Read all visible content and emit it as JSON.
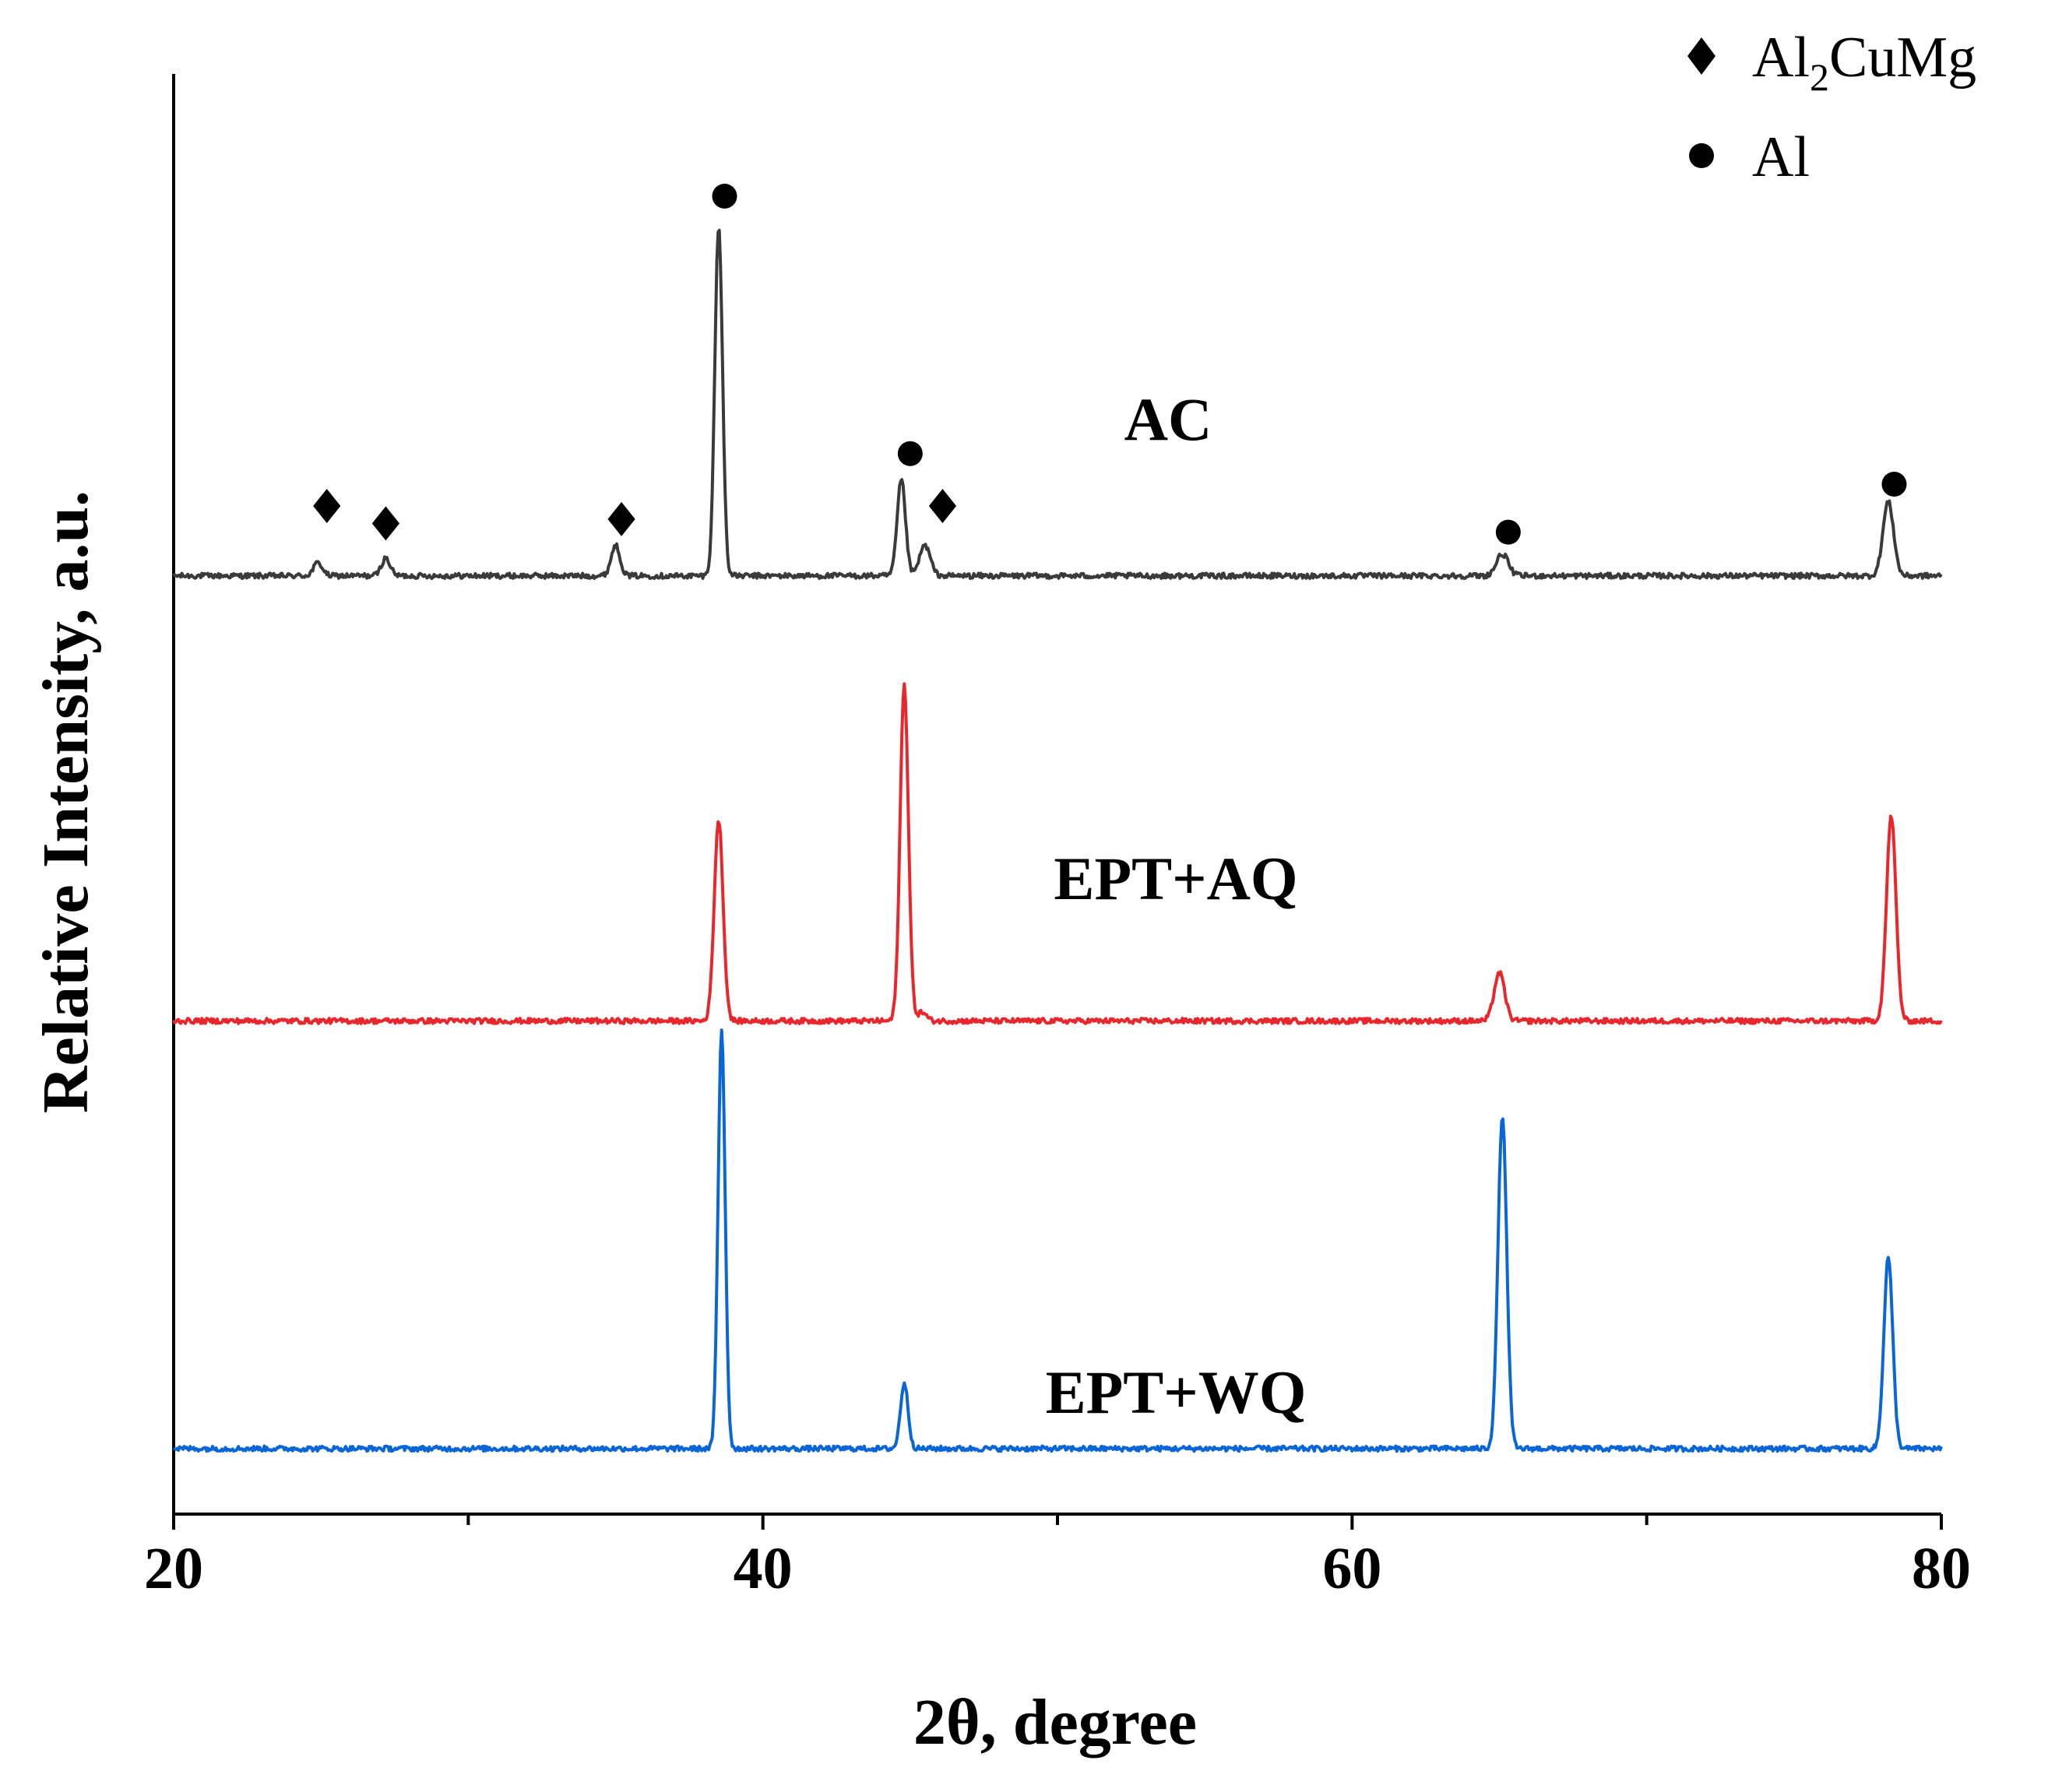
{
  "chart_data": {
    "type": "line",
    "title": "",
    "xlabel": "2θ, degree",
    "ylabel": "Relative Intensity, a.u.",
    "xlim": [
      20,
      80
    ],
    "ylim": [
      0,
      3.3
    ],
    "grid": false,
    "x_ticks": [
      20,
      40,
      60,
      80
    ],
    "x_minor_ticks": [
      30,
      50,
      70
    ],
    "legend": {
      "placement": "top-right",
      "entries": [
        {
          "marker": "diamond",
          "label_main": "Al",
          "label_sub": "2",
          "label_rest": "CuMg"
        },
        {
          "marker": "circle",
          "label_main": "Al",
          "label_sub": "",
          "label_rest": ""
        }
      ]
    },
    "series": [
      {
        "name": "AC",
        "label": "AC",
        "color": "#3a3a3a",
        "baseline": 2.15,
        "peaks": [
          {
            "x": 24.9,
            "height": 0.03,
            "width": 0.15
          },
          {
            "x": 27.2,
            "height": 0.04,
            "width": 0.15
          },
          {
            "x": 35.0,
            "height": 0.07,
            "width": 0.15
          },
          {
            "x": 38.5,
            "height": 0.8,
            "width": 0.13
          },
          {
            "x": 44.7,
            "height": 0.22,
            "width": 0.14
          },
          {
            "x": 45.5,
            "height": 0.07,
            "width": 0.18
          },
          {
            "x": 65.1,
            "height": 0.05,
            "width": 0.2
          },
          {
            "x": 78.2,
            "height": 0.17,
            "width": 0.18
          }
        ],
        "markers": [
          {
            "x": 25.2,
            "y_offset": 0.16,
            "type": "diamond"
          },
          {
            "x": 27.2,
            "y_offset": 0.12,
            "type": "diamond"
          },
          {
            "x": 35.2,
            "y_offset": 0.13,
            "type": "diamond"
          },
          {
            "x": 38.7,
            "y_offset": 0.87,
            "type": "circle"
          },
          {
            "x": 45.0,
            "y_offset": 0.28,
            "type": "circle"
          },
          {
            "x": 46.1,
            "y_offset": 0.16,
            "type": "diamond"
          },
          {
            "x": 65.3,
            "y_offset": 0.1,
            "type": "circle"
          },
          {
            "x": 78.4,
            "y_offset": 0.21,
            "type": "circle"
          }
        ]
      },
      {
        "name": "EPT+AQ",
        "label": "EPT+AQ",
        "color": "#e8272d",
        "baseline": 1.13,
        "peaks": [
          {
            "x": 38.5,
            "height": 0.46,
            "width": 0.15
          },
          {
            "x": 44.8,
            "height": 0.77,
            "width": 0.14
          },
          {
            "x": 45.4,
            "height": 0.02,
            "width": 0.15
          },
          {
            "x": 65.0,
            "height": 0.11,
            "width": 0.18
          },
          {
            "x": 78.3,
            "height": 0.47,
            "width": 0.16
          }
        ],
        "markers": []
      },
      {
        "name": "EPT+WQ",
        "label": "EPT+WQ",
        "color": "#0a66d6",
        "baseline": 0.15,
        "peaks": [
          {
            "x": 38.6,
            "height": 0.96,
            "width": 0.12
          },
          {
            "x": 44.8,
            "height": 0.15,
            "width": 0.13
          },
          {
            "x": 65.1,
            "height": 0.76,
            "width": 0.15
          },
          {
            "x": 78.2,
            "height": 0.44,
            "width": 0.15
          }
        ],
        "markers": []
      }
    ]
  }
}
